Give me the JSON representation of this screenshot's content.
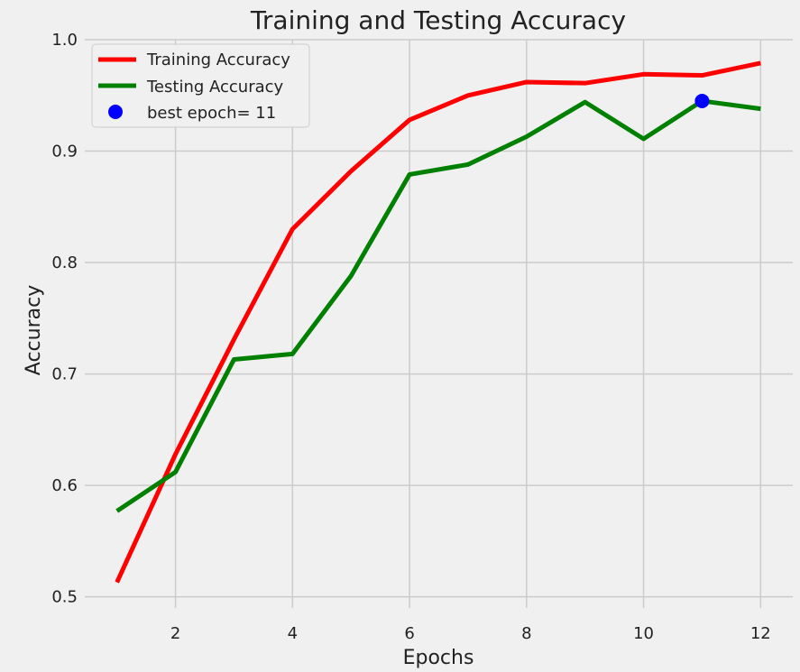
{
  "chart_data": {
    "type": "line",
    "title": "Training and Testing Accuracy",
    "xlabel": "Epochs",
    "ylabel": "Accuracy",
    "xlim": [
      0.45,
      12.55
    ],
    "ylim": [
      0.49,
      1.0
    ],
    "xticks": [
      2,
      4,
      6,
      8,
      10,
      12
    ],
    "yticks": [
      0.5,
      0.6,
      0.7,
      0.8,
      0.9,
      1.0
    ],
    "grid": true,
    "legend_position": "top-left",
    "x": [
      1,
      2,
      3,
      4,
      5,
      6,
      7,
      8,
      9,
      10,
      11,
      12
    ],
    "series": [
      {
        "name": "Training Accuracy",
        "color": "#ff0000",
        "values": [
          0.513,
          0.628,
          0.731,
          0.83,
          0.882,
          0.928,
          0.95,
          0.962,
          0.961,
          0.969,
          0.968,
          0.979
        ]
      },
      {
        "name": "Testing Accuracy",
        "color": "#008000",
        "values": [
          0.577,
          0.612,
          0.713,
          0.718,
          0.788,
          0.879,
          0.888,
          0.913,
          0.944,
          0.911,
          0.945,
          0.938
        ]
      }
    ],
    "best_point": {
      "label": "best epoch= 11",
      "x": 11,
      "y": 0.945,
      "color": "#0000ff"
    }
  }
}
